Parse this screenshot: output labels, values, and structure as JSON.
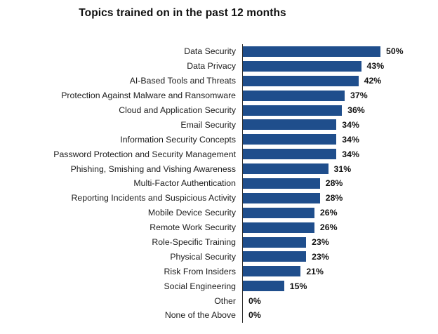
{
  "chart": {
    "title": "Topics trained on in the past 12 months"
  },
  "chart_data": {
    "type": "bar",
    "orientation": "horizontal",
    "title": "Topics trained on in the past 12 months",
    "xlabel": "",
    "ylabel": "",
    "xlim": [
      0,
      60
    ],
    "grid": false,
    "legend": null,
    "value_label_position": "end-of-bar",
    "value_suffix": "%",
    "bar_color": "#1f4e8c",
    "axis_color": "#2d2d2d",
    "categories": [
      "Data Security",
      "Data Privacy",
      "AI-Based Tools and Threats",
      "Protection Against Malware and Ransomware",
      "Cloud and Application Security",
      "Email Security",
      "Information Security Concepts",
      "Password Protection and Security Management",
      "Phishing, Smishing and Vishing Awareness",
      "Multi-Factor Authentication",
      "Reporting Incidents and Suspicious Activity",
      "Mobile Device Security",
      "Remote Work Security",
      "Role-Specific Training",
      "Physical Security",
      "Risk From Insiders",
      "Social Engineering",
      "Other",
      "None of the Above"
    ],
    "values": [
      50,
      43,
      42,
      37,
      36,
      34,
      34,
      34,
      31,
      28,
      28,
      26,
      26,
      23,
      23,
      21,
      15,
      0,
      0
    ],
    "value_labels": [
      "50%",
      "43%",
      "42%",
      "37%",
      "36%",
      "34%",
      "34%",
      "34%",
      "31%",
      "28%",
      "28%",
      "26%",
      "26%",
      "23%",
      "23%",
      "21%",
      "15%",
      "0%",
      "0%"
    ]
  }
}
